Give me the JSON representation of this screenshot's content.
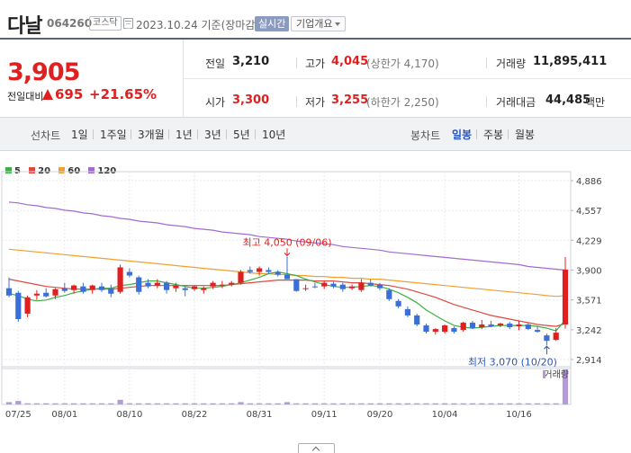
{
  "header": {
    "name": "다날",
    "code": "064260",
    "market": "코스닥",
    "date_text": "2023.10.24  기준(장마감)",
    "realtime_label": "실시간",
    "company_info_label": "기업개요"
  },
  "quote": {
    "price": "3,905",
    "change_label": "전일대비",
    "change_value": "695",
    "change_rate": "+21.65%",
    "prev_close_label": "전일",
    "prev_close": "3,210",
    "high_label": "고가",
    "high": "4,045",
    "high_limit": "(상한가 4,170)",
    "volume_label": "거래량",
    "volume": "11,895,411",
    "open_label": "시가",
    "open": "3,300",
    "low_label": "저가",
    "low": "3,255",
    "low_limit": "(하한가 2,250)",
    "amount_label": "거래대금",
    "amount": "44,485",
    "amount_unit": "백만"
  },
  "tabs": {
    "line_chart_label": "선차트",
    "line_periods": [
      "1일",
      "1주일",
      "3개월",
      "1년",
      "3년",
      "5년",
      "10년"
    ],
    "candle_label": "봉차트",
    "candle_periods": [
      "일봉",
      "주봉",
      "월봉"
    ],
    "active_candle": "일봉"
  },
  "colors": {
    "up": "#e02020",
    "down": "#3a6fd8",
    "ma5": "#3cb043",
    "ma20": "#e0483f",
    "ma60": "#f0a030",
    "ma120": "#a26bd0"
  },
  "chart_data": {
    "type": "candlestick",
    "legend": [
      "5",
      "20",
      "60",
      "120"
    ],
    "y_ticks": [
      "4,886",
      "4,557",
      "4,229",
      "3,900",
      "3,571",
      "3,242",
      "2,914"
    ],
    "ylim": [
      2914,
      4886
    ],
    "x_labels": [
      "07/25",
      "08/01",
      "08/10",
      "08/22",
      "08/31",
      "09/11",
      "09/20",
      "10/04",
      "10/16"
    ],
    "x_label_index": [
      1,
      6,
      13,
      20,
      27,
      34,
      40,
      47,
      55
    ],
    "volume_label": "거래량",
    "annotations": {
      "high": "최고 4,050 (09/06)",
      "high_index": 30,
      "high_value": 4050,
      "low": "최저 3,070 (10/20)",
      "low_index": 58,
      "low_value": 3070
    },
    "candles": [
      [
        3700,
        3820,
        3600,
        3620
      ],
      [
        3650,
        3670,
        3330,
        3360
      ],
      [
        3420,
        3620,
        3380,
        3600
      ],
      [
        3620,
        3680,
        3570,
        3640
      ],
      [
        3650,
        3700,
        3600,
        3610
      ],
      [
        3620,
        3700,
        3580,
        3690
      ],
      [
        3700,
        3760,
        3650,
        3670
      ],
      [
        3680,
        3740,
        3640,
        3730
      ],
      [
        3720,
        3760,
        3640,
        3660
      ],
      [
        3680,
        3740,
        3640,
        3730
      ],
      [
        3720,
        3760,
        3660,
        3680
      ],
      [
        3700,
        3740,
        3600,
        3640
      ],
      [
        3660,
        3960,
        3640,
        3930
      ],
      [
        3880,
        3920,
        3820,
        3840
      ],
      [
        3820,
        3840,
        3630,
        3660
      ],
      [
        3760,
        3800,
        3700,
        3720
      ],
      [
        3730,
        3800,
        3700,
        3760
      ],
      [
        3760,
        3780,
        3640,
        3680
      ],
      [
        3700,
        3760,
        3660,
        3730
      ],
      [
        3700,
        3720,
        3610,
        3680
      ],
      [
        3690,
        3730,
        3670,
        3720
      ],
      [
        3680,
        3720,
        3640,
        3700
      ],
      [
        3720,
        3780,
        3690,
        3760
      ],
      [
        3740,
        3780,
        3700,
        3740
      ],
      [
        3740,
        3780,
        3720,
        3760
      ],
      [
        3760,
        3900,
        3740,
        3880
      ],
      [
        3900,
        3940,
        3860,
        3880
      ],
      [
        3880,
        3940,
        3840,
        3920
      ],
      [
        3900,
        3930,
        3860,
        3880
      ],
      [
        3880,
        3900,
        3830,
        3850
      ],
      [
        3850,
        4050,
        3800,
        3800
      ],
      [
        3800,
        3800,
        3660,
        3670
      ],
      [
        3700,
        3740,
        3670,
        3700
      ],
      [
        3720,
        3760,
        3700,
        3710
      ],
      [
        3720,
        3780,
        3690,
        3760
      ],
      [
        3750,
        3770,
        3700,
        3720
      ],
      [
        3740,
        3760,
        3660,
        3690
      ],
      [
        3700,
        3740,
        3680,
        3720
      ],
      [
        3680,
        3800,
        3660,
        3760
      ],
      [
        3760,
        3800,
        3720,
        3730
      ],
      [
        3740,
        3760,
        3680,
        3700
      ],
      [
        3680,
        3700,
        3560,
        3580
      ],
      [
        3560,
        3580,
        3480,
        3500
      ],
      [
        3470,
        3500,
        3380,
        3400
      ],
      [
        3400,
        3420,
        3280,
        3300
      ],
      [
        3290,
        3310,
        3200,
        3220
      ],
      [
        3220,
        3260,
        3190,
        3250
      ],
      [
        3220,
        3300,
        3200,
        3290
      ],
      [
        3260,
        3280,
        3200,
        3220
      ],
      [
        3240,
        3330,
        3220,
        3320
      ],
      [
        3320,
        3340,
        3250,
        3260
      ],
      [
        3270,
        3350,
        3250,
        3300
      ],
      [
        3300,
        3340,
        3270,
        3280
      ],
      [
        3290,
        3320,
        3270,
        3310
      ],
      [
        3310,
        3330,
        3250,
        3270
      ],
      [
        3280,
        3340,
        3240,
        3300
      ],
      [
        3300,
        3320,
        3240,
        3250
      ],
      [
        3240,
        3280,
        3210,
        3220
      ],
      [
        3180,
        3200,
        3070,
        3120
      ],
      [
        3130,
        3260,
        3120,
        3210
      ],
      [
        3300,
        4045,
        3255,
        3905
      ]
    ],
    "ma5": [
      3640,
      3620,
      3580,
      3560,
      3570,
      3600,
      3620,
      3650,
      3670,
      3690,
      3700,
      3700,
      3730,
      3740,
      3760,
      3780,
      3780,
      3760,
      3740,
      3720,
      3700,
      3700,
      3710,
      3720,
      3740,
      3760,
      3790,
      3820,
      3860,
      3880,
      3860,
      3840,
      3800,
      3770,
      3740,
      3720,
      3710,
      3710,
      3720,
      3730,
      3720,
      3690,
      3650,
      3600,
      3540,
      3460,
      3400,
      3340,
      3290,
      3270,
      3260,
      3270,
      3280,
      3290,
      3290,
      3290,
      3290,
      3280,
      3260,
      3230,
      3350
    ],
    "ma20": [
      3800,
      3780,
      3760,
      3740,
      3720,
      3710,
      3700,
      3690,
      3690,
      3690,
      3690,
      3690,
      3700,
      3710,
      3720,
      3730,
      3730,
      3730,
      3730,
      3730,
      3730,
      3730,
      3730,
      3730,
      3740,
      3750,
      3760,
      3770,
      3780,
      3790,
      3790,
      3790,
      3790,
      3780,
      3780,
      3780,
      3770,
      3760,
      3760,
      3750,
      3740,
      3730,
      3710,
      3690,
      3660,
      3630,
      3600,
      3560,
      3520,
      3490,
      3460,
      3430,
      3400,
      3380,
      3360,
      3340,
      3320,
      3300,
      3290,
      3280,
      3310
    ],
    "ma60": [
      4130,
      4120,
      4110,
      4100,
      4090,
      4080,
      4070,
      4060,
      4050,
      4040,
      4030,
      4020,
      4010,
      4000,
      3990,
      3980,
      3970,
      3960,
      3950,
      3940,
      3930,
      3920,
      3910,
      3900,
      3890,
      3880,
      3870,
      3860,
      3860,
      3850,
      3850,
      3840,
      3840,
      3830,
      3830,
      3820,
      3820,
      3810,
      3810,
      3800,
      3800,
      3790,
      3780,
      3770,
      3760,
      3750,
      3740,
      3730,
      3720,
      3710,
      3700,
      3690,
      3680,
      3670,
      3660,
      3650,
      3640,
      3630,
      3620,
      3610,
      3620
    ],
    "ma120": [
      4650,
      4640,
      4620,
      4610,
      4590,
      4580,
      4560,
      4550,
      4530,
      4520,
      4500,
      4490,
      4470,
      4460,
      4440,
      4430,
      4420,
      4400,
      4390,
      4380,
      4360,
      4350,
      4340,
      4320,
      4310,
      4300,
      4290,
      4270,
      4260,
      4250,
      4240,
      4220,
      4210,
      4200,
      4190,
      4180,
      4160,
      4150,
      4140,
      4130,
      4120,
      4100,
      4090,
      4080,
      4070,
      4060,
      4050,
      4040,
      4030,
      4020,
      4010,
      4000,
      3990,
      3980,
      3970,
      3960,
      3940,
      3930,
      3920,
      3910,
      3900
    ],
    "volume": [
      2,
      3,
      1,
      1,
      1,
      1,
      1,
      1,
      1,
      1,
      1,
      1,
      4,
      1,
      1,
      1,
      1,
      1,
      1,
      1,
      1,
      1,
      1,
      1,
      1,
      2,
      1,
      1,
      1,
      1,
      2,
      1,
      1,
      1,
      1,
      1,
      1,
      1,
      1,
      1,
      1,
      1,
      1,
      1,
      1,
      1,
      1,
      1,
      1,
      1,
      1,
      1,
      1,
      1,
      1,
      1,
      1,
      1,
      1,
      1,
      30
    ]
  }
}
